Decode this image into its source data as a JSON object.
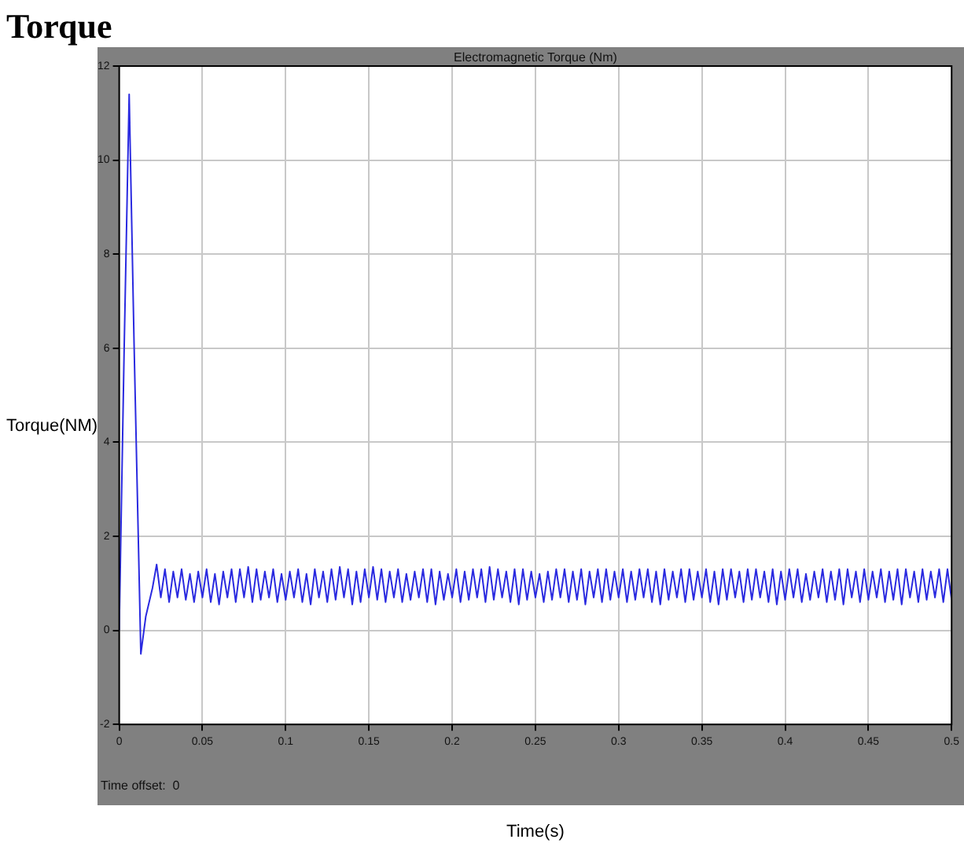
{
  "chart_data": {
    "type": "line",
    "title": "Torque",
    "subtitle": "Electromagnetic Torque (Nm)",
    "xlabel": "Time(s)",
    "ylabel": "Torque(NM)",
    "annotations": [
      "Time offset:  0"
    ],
    "xlim": [
      0,
      0.5
    ],
    "ylim": [
      -2,
      12
    ],
    "xticks": [
      0,
      0.05,
      0.1,
      0.15,
      0.2,
      0.25,
      0.3,
      0.35,
      0.4,
      0.45,
      0.5
    ],
    "yticks": [
      -2,
      0,
      2,
      4,
      6,
      8,
      10,
      12
    ],
    "grid": true,
    "legend": false,
    "marker": "none",
    "line_style": "solid",
    "series": [
      {
        "color": "#2a2ae0",
        "x": [
          0,
          0.003,
          0.006,
          0.009,
          0.013,
          0.016,
          0.02,
          0.0225,
          0.025,
          0.0275,
          0.03,
          0.0325,
          0.035,
          0.0375,
          0.04,
          0.0425,
          0.045,
          0.0475,
          0.05,
          0.0525,
          0.055,
          0.0575,
          0.06,
          0.0625,
          0.065,
          0.0675,
          0.07,
          0.0725,
          0.075,
          0.0775,
          0.08,
          0.0825,
          0.085,
          0.0875,
          0.09,
          0.0925,
          0.095,
          0.0975,
          0.1,
          0.1025,
          0.105,
          0.1075,
          0.11,
          0.1125,
          0.115,
          0.1175,
          0.12,
          0.1225,
          0.125,
          0.1275,
          0.13,
          0.1325,
          0.135,
          0.1375,
          0.14,
          0.1425,
          0.145,
          0.1475,
          0.15,
          0.1525,
          0.155,
          0.1575,
          0.16,
          0.1625,
          0.165,
          0.1675,
          0.17,
          0.1725,
          0.175,
          0.1775,
          0.18,
          0.1825,
          0.185,
          0.1875,
          0.19,
          0.1925,
          0.195,
          0.1975,
          0.2,
          0.2025,
          0.205,
          0.2075,
          0.21,
          0.2125,
          0.215,
          0.2175,
          0.22,
          0.2225,
          0.225,
          0.2275,
          0.23,
          0.2325,
          0.235,
          0.2375,
          0.24,
          0.2425,
          0.245,
          0.2475,
          0.25,
          0.2525,
          0.255,
          0.2575,
          0.26,
          0.2625,
          0.265,
          0.2675,
          0.27,
          0.2725,
          0.275,
          0.2775,
          0.28,
          0.2825,
          0.285,
          0.2875,
          0.29,
          0.2925,
          0.295,
          0.2975,
          0.3,
          0.3025,
          0.305,
          0.3075,
          0.31,
          0.3125,
          0.315,
          0.3175,
          0.32,
          0.3225,
          0.325,
          0.3275,
          0.33,
          0.3325,
          0.335,
          0.3375,
          0.34,
          0.3425,
          0.345,
          0.3475,
          0.35,
          0.3525,
          0.355,
          0.3575,
          0.36,
          0.3625,
          0.365,
          0.3675,
          0.37,
          0.3725,
          0.375,
          0.3775,
          0.38,
          0.3825,
          0.385,
          0.3875,
          0.39,
          0.3925,
          0.395,
          0.3975,
          0.4,
          0.4025,
          0.405,
          0.4075,
          0.41,
          0.4125,
          0.415,
          0.4175,
          0.42,
          0.4225,
          0.425,
          0.4275,
          0.43,
          0.4325,
          0.435,
          0.4375,
          0.44,
          0.4425,
          0.445,
          0.4475,
          0.45,
          0.4525,
          0.455,
          0.4575,
          0.46,
          0.4625,
          0.465,
          0.4675,
          0.47,
          0.4725,
          0.475,
          0.4775,
          0.48,
          0.4825,
          0.485,
          0.4875,
          0.49,
          0.4925,
          0.495,
          0.4975,
          0.5
        ],
        "values": [
          0,
          6,
          11.4,
          6,
          -0.5,
          0.3,
          0.9,
          1.4,
          0.7,
          1.3,
          0.6,
          1.25,
          0.7,
          1.3,
          0.65,
          1.2,
          0.6,
          1.25,
          0.7,
          1.3,
          0.6,
          1.2,
          0.55,
          1.25,
          0.7,
          1.3,
          0.6,
          1.3,
          0.7,
          1.35,
          0.6,
          1.3,
          0.65,
          1.25,
          0.7,
          1.3,
          0.6,
          1.2,
          0.65,
          1.25,
          0.7,
          1.3,
          0.6,
          1.2,
          0.55,
          1.3,
          0.7,
          1.25,
          0.6,
          1.3,
          0.65,
          1.35,
          0.7,
          1.3,
          0.55,
          1.25,
          0.6,
          1.3,
          0.7,
          1.35,
          0.65,
          1.3,
          0.6,
          1.25,
          0.7,
          1.3,
          0.6,
          1.2,
          0.65,
          1.25,
          0.7,
          1.3,
          0.6,
          1.3,
          0.55,
          1.25,
          0.65,
          1.2,
          0.7,
          1.3,
          0.6,
          1.25,
          0.65,
          1.3,
          0.7,
          1.3,
          0.6,
          1.35,
          0.65,
          1.3,
          0.7,
          1.25,
          0.6,
          1.3,
          0.55,
          1.3,
          0.65,
          1.25,
          0.7,
          1.2,
          0.6,
          1.25,
          0.65,
          1.3,
          0.7,
          1.3,
          0.6,
          1.25,
          0.65,
          1.3,
          0.55,
          1.25,
          0.7,
          1.3,
          0.6,
          1.3,
          0.65,
          1.25,
          0.7,
          1.3,
          0.6,
          1.25,
          0.65,
          1.3,
          0.7,
          1.3,
          0.6,
          1.25,
          0.55,
          1.3,
          0.65,
          1.25,
          0.7,
          1.3,
          0.6,
          1.3,
          0.65,
          1.25,
          0.7,
          1.3,
          0.6,
          1.25,
          0.55,
          1.3,
          0.65,
          1.3,
          0.7,
          1.25,
          0.6,
          1.3,
          0.65,
          1.3,
          0.7,
          1.25,
          0.6,
          1.3,
          0.55,
          1.25,
          0.65,
          1.3,
          0.7,
          1.3,
          0.6,
          1.2,
          0.65,
          1.25,
          0.7,
          1.3,
          0.6,
          1.25,
          0.65,
          1.3,
          0.55,
          1.3,
          0.7,
          1.25,
          0.6,
          1.3,
          0.65,
          1.25,
          0.7,
          1.3,
          0.6,
          1.25,
          0.65,
          1.3,
          0.55,
          1.3,
          0.7,
          1.25,
          0.6,
          1.3,
          0.65,
          1.25,
          0.7,
          1.3,
          0.6,
          1.3,
          0.65
        ]
      }
    ]
  }
}
